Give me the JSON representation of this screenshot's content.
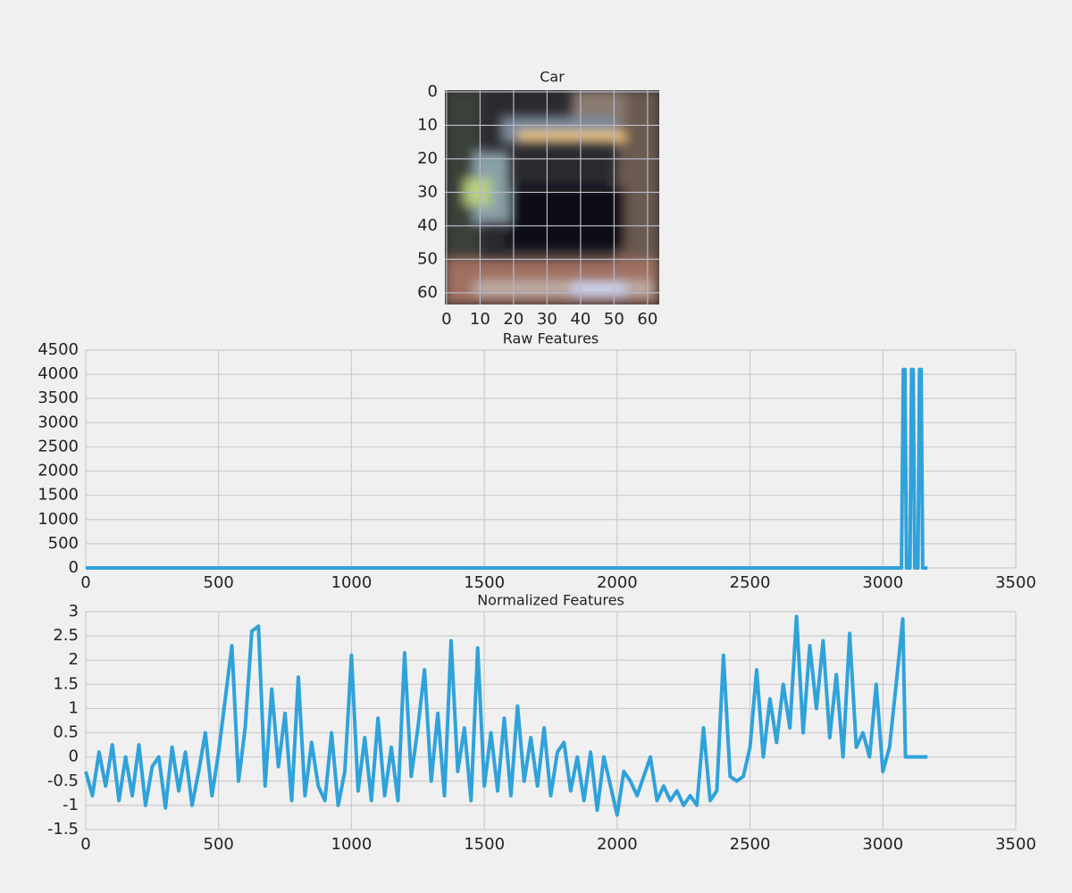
{
  "chart_data": [
    {
      "type": "image",
      "title": "Car",
      "xlim": [
        -0.5,
        63.5
      ],
      "ylim": [
        63.5,
        -0.5
      ],
      "xticks": [
        0,
        10,
        20,
        30,
        40,
        50,
        60
      ],
      "yticks": [
        0,
        10,
        20,
        30,
        40,
        50,
        60
      ],
      "grid": true
    },
    {
      "type": "line",
      "title": "Raw Features",
      "color": "#30a2da",
      "x": [
        0,
        3070,
        3077,
        3083,
        3089,
        3102,
        3108,
        3114,
        3120,
        3132,
        3138,
        3144,
        3150,
        3168
      ],
      "values": [
        0,
        0,
        4100,
        4100,
        0,
        0,
        4100,
        4100,
        0,
        0,
        4100,
        4100,
        0,
        0
      ],
      "xlim": [
        0,
        3500
      ],
      "ylim": [
        0,
        4500
      ],
      "xticks": [
        0,
        500,
        1000,
        1500,
        2000,
        2500,
        3000,
        3500
      ],
      "yticks": [
        0,
        500,
        1000,
        1500,
        2000,
        2500,
        3000,
        3500,
        4000,
        4500
      ],
      "grid": true
    },
    {
      "type": "line",
      "title": "Normalized Features",
      "color": "#30a2da",
      "x": [
        0,
        25,
        50,
        75,
        100,
        125,
        150,
        175,
        200,
        225,
        250,
        275,
        300,
        325,
        350,
        375,
        400,
        425,
        450,
        475,
        500,
        525,
        550,
        575,
        600,
        625,
        650,
        675,
        700,
        725,
        750,
        775,
        800,
        825,
        850,
        875,
        900,
        925,
        950,
        975,
        1000,
        1025,
        1050,
        1075,
        1100,
        1125,
        1150,
        1175,
        1200,
        1225,
        1250,
        1275,
        1300,
        1325,
        1350,
        1375,
        1400,
        1425,
        1450,
        1475,
        1500,
        1525,
        1550,
        1575,
        1600,
        1625,
        1650,
        1675,
        1700,
        1725,
        1750,
        1775,
        1800,
        1825,
        1850,
        1875,
        1900,
        1925,
        1950,
        1975,
        2000,
        2025,
        2050,
        2075,
        2100,
        2125,
        2150,
        2175,
        2200,
        2225,
        2250,
        2275,
        2300,
        2325,
        2350,
        2375,
        2400,
        2425,
        2450,
        2475,
        2500,
        2525,
        2550,
        2575,
        2600,
        2625,
        2650,
        2675,
        2700,
        2725,
        2750,
        2775,
        2800,
        2825,
        2850,
        2875,
        2900,
        2925,
        2950,
        2975,
        3000,
        3025,
        3050,
        3075,
        3085,
        3168
      ],
      "values": [
        -0.3,
        -0.8,
        0.1,
        -0.6,
        0.25,
        -0.9,
        0.0,
        -0.8,
        0.25,
        -1.0,
        -0.2,
        0.0,
        -1.05,
        0.2,
        -0.7,
        0.1,
        -1.0,
        -0.3,
        0.5,
        -0.8,
        0.1,
        1.2,
        2.3,
        -0.5,
        0.6,
        2.6,
        2.7,
        -0.6,
        1.4,
        -0.2,
        0.9,
        -0.9,
        1.65,
        -0.8,
        0.3,
        -0.6,
        -0.9,
        0.5,
        -1.0,
        -0.3,
        2.1,
        -0.7,
        0.4,
        -0.9,
        0.8,
        -0.8,
        0.2,
        -0.9,
        2.15,
        -0.4,
        0.6,
        1.8,
        -0.5,
        0.9,
        -0.8,
        2.4,
        -0.3,
        0.6,
        -0.9,
        2.25,
        -0.6,
        0.5,
        -0.7,
        0.8,
        -0.8,
        1.05,
        -0.5,
        0.4,
        -0.6,
        0.6,
        -0.8,
        0.1,
        0.3,
        -0.7,
        0.0,
        -0.9,
        0.1,
        -1.1,
        0.0,
        -0.6,
        -1.2,
        -0.3,
        -0.5,
        -0.8,
        -0.4,
        0.0,
        -0.9,
        -0.6,
        -0.9,
        -0.7,
        -1.0,
        -0.8,
        -1.0,
        0.6,
        -0.9,
        -0.7,
        2.1,
        -0.4,
        -0.5,
        -0.4,
        0.2,
        1.8,
        0.0,
        1.2,
        0.3,
        1.5,
        0.6,
        2.9,
        0.5,
        2.3,
        1.0,
        2.4,
        0.4,
        1.7,
        0.0,
        2.55,
        0.2,
        0.5,
        0.0,
        1.5,
        -0.3,
        0.2,
        1.5,
        2.85,
        0,
        0
      ],
      "xlim": [
        0,
        3500
      ],
      "ylim": [
        -1.5,
        3.0
      ],
      "xticks": [
        0,
        500,
        1000,
        1500,
        2000,
        2500,
        3000,
        3500
      ],
      "yticks": [
        -1.5,
        -1.0,
        -0.5,
        0.0,
        0.5,
        1.0,
        1.5,
        2.0,
        2.5,
        3.0
      ],
      "grid": true
    }
  ]
}
